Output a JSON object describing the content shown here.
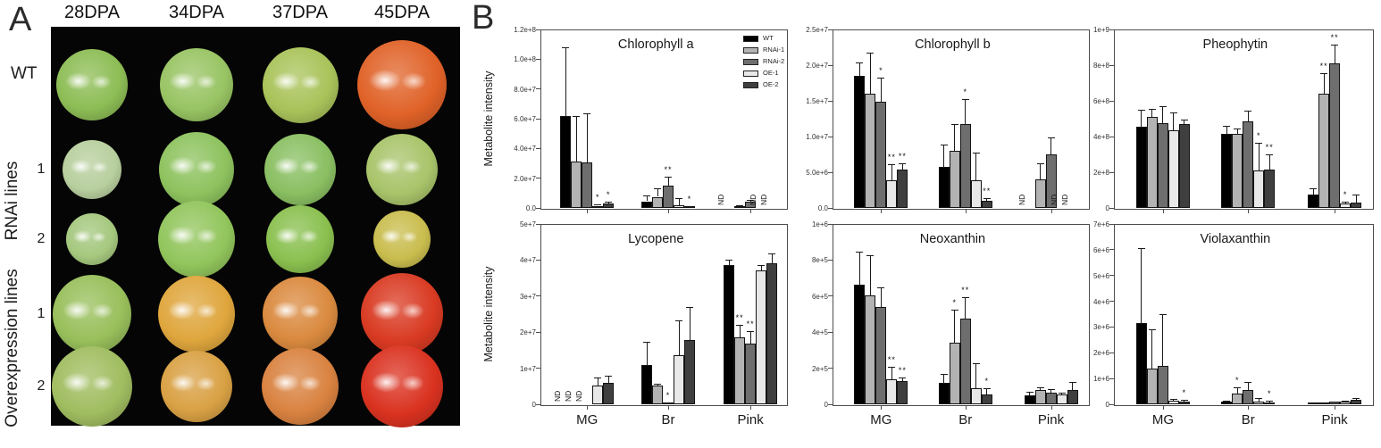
{
  "panel_a": {
    "label": "A",
    "column_headers": [
      "28DPA",
      "34DPA",
      "37DPA",
      "45DPA"
    ],
    "row_label_wt": "WT",
    "group_label_rnai": "RNAi lines",
    "group_label_oe": "Overexpression lines",
    "row_numbers": [
      "1",
      "2",
      "1",
      "2"
    ],
    "tomato_colors": [
      [
        "#8dbd55",
        "#98c463",
        "#a9c35a",
        "#e06228"
      ],
      [
        "#b8cf9e",
        "#8ec25e",
        "#8abf62",
        "#a8c46a"
      ],
      [
        "#a5c87e",
        "#92c55c",
        "#8ac04f",
        "#c9bd4e"
      ],
      [
        "#98bf5b",
        "#dfa63d",
        "#da8a3f",
        "#d93a22"
      ],
      [
        "#a0bd60",
        "#d9a144",
        "#d98240",
        "#da3220"
      ]
    ],
    "tomato_sizes": [
      [
        80,
        82,
        85,
        100
      ],
      [
        66,
        84,
        80,
        80
      ],
      [
        58,
        86,
        76,
        64
      ],
      [
        88,
        86,
        84,
        92
      ],
      [
        90,
        80,
        86,
        92
      ]
    ]
  },
  "panel_b": {
    "label": "B"
  },
  "chart_data": {
    "type": "bar",
    "categories": [
      "MG",
      "Br",
      "Pink"
    ],
    "series_names": [
      "WT",
      "RNAi-1",
      "RNAi-2",
      "OE-1",
      "OE-2"
    ],
    "series_colors": [
      "#000000",
      "#b3b3b3",
      "#6e6e6e",
      "#e8e8e8",
      "#3f3f3f"
    ],
    "ylabel": "Metabolite intensity",
    "legend_position": "top-right of first chart",
    "nd_label": "ND",
    "charts": [
      {
        "title": "Chlorophyll a",
        "ylim": [
          0,
          120000000.0
        ],
        "ytick_labels": [
          "0.0",
          "2.0e+7",
          "4.0e+7",
          "6.0e+7",
          "8.0e+7",
          "1.0e+8",
          "1.2e+8"
        ],
        "series": [
          {
            "name": "WT",
            "values": [
              62000000.0,
              4500000.0,
              null
            ],
            "errors": [
              46000000.0,
              4000000.0,
              0
            ],
            "sig": [
              "",
              "",
              ""
            ]
          },
          {
            "name": "RNAi-1",
            "values": [
              31000000.0,
              7500000.0,
              1500000.0
            ],
            "errors": [
              31000000.0,
              5500000.0,
              600000.0
            ],
            "sig": [
              "",
              "",
              ""
            ]
          },
          {
            "name": "RNAi-2",
            "values": [
              30500000.0,
              15000000.0,
              4000000.0
            ],
            "errors": [
              33000000.0,
              6000000.0,
              1200000.0
            ],
            "sig": [
              "",
              "**",
              ""
            ]
          },
          {
            "name": "OE-1",
            "values": [
              1500000.0,
              2000000.0,
              null
            ],
            "errors": [
              800000.0,
              4500000.0,
              0
            ],
            "sig": [
              "*",
              "",
              ""
            ]
          },
          {
            "name": "OE-2",
            "values": [
              2800000.0,
              400000.0,
              null
            ],
            "errors": [
              1200000.0,
              0,
              0
            ],
            "sig": [
              "*",
              "*",
              ""
            ]
          }
        ]
      },
      {
        "title": "Chlorophyll b",
        "ylim": [
          0,
          25000000.0
        ],
        "ytick_labels": [
          "0.0",
          "5.0e+6",
          "1.0e+7",
          "1.5e+7",
          "2.0e+7",
          "2.5e+7"
        ],
        "series": [
          {
            "name": "WT",
            "values": [
              18500000.0,
              5700000.0,
              null
            ],
            "errors": [
              1900000.0,
              3200000.0,
              0
            ],
            "sig": [
              "",
              "",
              ""
            ]
          },
          {
            "name": "RNAi-1",
            "values": [
              16000000.0,
              8000000.0,
              4000000.0
            ],
            "errors": [
              5800000.0,
              3800000.0,
              2200000.0
            ],
            "sig": [
              "",
              "",
              ""
            ]
          },
          {
            "name": "RNAi-2",
            "values": [
              14900000.0,
              11700000.0,
              7500000.0
            ],
            "errors": [
              3400000.0,
              3500000.0,
              2400000.0
            ],
            "sig": [
              "*",
              "*",
              ""
            ]
          },
          {
            "name": "OE-1",
            "values": [
              3900000.0,
              3900000.0,
              null
            ],
            "errors": [
              2200000.0,
              3800000.0,
              0
            ],
            "sig": [
              "**",
              "",
              ""
            ]
          },
          {
            "name": "OE-2",
            "values": [
              5400000.0,
              1000000.0,
              null
            ],
            "errors": [
              800000.0,
              400000.0,
              0
            ],
            "sig": [
              "**",
              "**",
              ""
            ]
          }
        ]
      },
      {
        "title": "Pheophytin",
        "ylim": [
          0,
          1000000000.0
        ],
        "ytick_labels": [
          "0",
          "2e+8",
          "4e+8",
          "6e+8",
          "8e+8",
          "1e+9"
        ],
        "series": [
          {
            "name": "WT",
            "values": [
              455000000.0,
              415000000.0,
              75000000.0
            ],
            "errors": [
              95000000.0,
              45000000.0,
              35000000.0
            ],
            "sig": [
              "",
              "",
              ""
            ]
          },
          {
            "name": "RNAi-1",
            "values": [
              510000000.0,
              415000000.0,
              640000000.0
            ],
            "errors": [
              45000000.0,
              30000000.0,
              115000000.0
            ],
            "sig": [
              "",
              "",
              "**"
            ]
          },
          {
            "name": "RNAi-2",
            "values": [
              475000000.0,
              485000000.0,
              810000000.0
            ],
            "errors": [
              95000000.0,
              60000000.0,
              105000000.0
            ],
            "sig": [
              "",
              "",
              "**"
            ]
          },
          {
            "name": "OE-1",
            "values": [
              435000000.0,
              210000000.0,
              25000000.0
            ],
            "errors": [
              100000000.0,
              155000000.0,
              8000000.0
            ],
            "sig": [
              "",
              "*",
              "*"
            ]
          },
          {
            "name": "OE-2",
            "values": [
              470000000.0,
              215000000.0,
              30000000.0
            ],
            "errors": [
              25000000.0,
              85000000.0,
              45000000.0
            ],
            "sig": [
              "",
              "**",
              ""
            ]
          }
        ]
      },
      {
        "title": "Lycopene",
        "ylim": [
          0,
          50000000.0
        ],
        "ytick_labels": [
          "0",
          "1e+7",
          "2e+7",
          "3e+7",
          "4e+7",
          "5e+7"
        ],
        "series": [
          {
            "name": "WT",
            "values": [
              null,
              11000000.0,
              38500000.0
            ],
            "errors": [
              0,
              6400000.0,
              1700000.0
            ],
            "sig": [
              "",
              "",
              ""
            ]
          },
          {
            "name": "RNAi-1",
            "values": [
              null,
              5300000.0,
              18500000.0
            ],
            "errors": [
              0,
              400000.0,
              3600000.0
            ],
            "sig": [
              "",
              "",
              "**"
            ]
          },
          {
            "name": "RNAi-2",
            "values": [
              null,
              500000.0,
              16800000.0
            ],
            "errors": [
              0,
              0,
              3500000.0
            ],
            "sig": [
              "",
              "*",
              "**"
            ]
          },
          {
            "name": "OE-1",
            "values": [
              5200000.0,
              13500000.0,
              37200000.0
            ],
            "errors": [
              2300000.0,
              9800000.0,
              1400000.0
            ],
            "sig": [
              "",
              "",
              ""
            ]
          },
          {
            "name": "OE-2",
            "values": [
              6000000.0,
              17800000.0,
              39200000.0
            ],
            "errors": [
              1800000.0,
              9300000.0,
              2600000.0
            ],
            "sig": [
              "",
              "",
              ""
            ]
          }
        ]
      },
      {
        "title": "Neoxanthin",
        "ylim": [
          0,
          1000000.0
        ],
        "ytick_labels": [
          "0",
          "2e+5",
          "4e+5",
          "6e+5",
          "8e+5",
          "1e+6"
        ],
        "series": [
          {
            "name": "WT",
            "values": [
              665000.0,
              120000.0,
              50000.0
            ],
            "errors": [
              180000.0,
              50000.0,
              20000.0
            ],
            "sig": [
              "",
              "",
              ""
            ]
          },
          {
            "name": "RNAi-1",
            "values": [
              605000.0,
              340000.0,
              80000.0
            ],
            "errors": [
              220000.0,
              185000.0,
              15000.0
            ],
            "sig": [
              "",
              "*",
              ""
            ]
          },
          {
            "name": "RNAi-2",
            "values": [
              540000.0,
              475000.0,
              65000.0
            ],
            "errors": [
              110000.0,
              120000.0,
              20000.0
            ],
            "sig": [
              "",
              "**",
              ""
            ]
          },
          {
            "name": "OE-1",
            "values": [
              140000.0,
              90000.0,
              55000.0
            ],
            "errors": [
              70000.0,
              140000.0,
              8000.0
            ],
            "sig": [
              "**",
              "",
              ""
            ]
          },
          {
            "name": "OE-2",
            "values": [
              130000.0,
              55000.0,
              80000.0
            ],
            "errors": [
              20000.0,
              35000.0,
              45000.0
            ],
            "sig": [
              "**",
              "*",
              ""
            ]
          }
        ]
      },
      {
        "title": "Violaxanthin",
        "ylim": [
          0,
          7000000.0
        ],
        "ytick_labels": [
          "0",
          "1e+6",
          "2e+6",
          "3e+6",
          "4e+6",
          "5e+6",
          "6e+6",
          "7e+6"
        ],
        "series": [
          {
            "name": "WT",
            "values": [
              3150000.0,
              100000.0,
              60000.0
            ],
            "errors": [
              2900000.0,
              40000.0,
              0
            ],
            "sig": [
              "",
              "",
              ""
            ]
          },
          {
            "name": "RNAi-1",
            "values": [
              1400000.0,
              420000.0,
              60000.0
            ],
            "errors": [
              1500000.0,
              230000.0,
              0
            ],
            "sig": [
              "",
              "*",
              ""
            ]
          },
          {
            "name": "RNAi-2",
            "values": [
              1500000.0,
              550000.0,
              90000.0
            ],
            "errors": [
              2000000.0,
              300000.0,
              20000.0
            ],
            "sig": [
              "",
              "",
              ""
            ]
          },
          {
            "name": "OE-1",
            "values": [
              130000.0,
              120000.0,
              120000.0
            ],
            "errors": [
              80000.0,
              130000.0,
              30000.0
            ],
            "sig": [
              "",
              "",
              ""
            ]
          },
          {
            "name": "OE-2",
            "values": [
              100000.0,
              80000.0,
              160000.0
            ],
            "errors": [
              60000.0,
              50000.0,
              90000.0
            ],
            "sig": [
              "*",
              "*",
              ""
            ]
          }
        ]
      }
    ]
  }
}
